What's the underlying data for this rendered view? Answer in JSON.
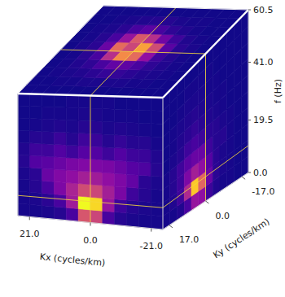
{
  "chart_data": {
    "type": "cube",
    "x_label": "Kx (cycles/km)",
    "y_label": "Ky (cycles/km)",
    "z_label": "f (Hz)",
    "xlim": [
      25,
      -25
    ],
    "ylim": [
      20,
      -20
    ],
    "zlim": [
      0,
      60.5
    ],
    "xticks": [
      {
        "value": 21,
        "label": "21.0"
      },
      {
        "value": 0,
        "label": "0.0"
      },
      {
        "value": -21,
        "label": "-21.0"
      }
    ],
    "yticks": [
      {
        "value": 17,
        "label": "17.0"
      },
      {
        "value": 0,
        "label": "0.0"
      },
      {
        "value": -17,
        "label": "-17.0"
      }
    ],
    "zticks": [
      {
        "value": 0,
        "label": "0.0"
      },
      19.5,
      {
        "value": 41,
        "label": "41.0"
      },
      60.5
    ],
    "color_range": [
      0,
      1
    ],
    "slice": {
      "Kx": 0,
      "Ky": 0,
      "f": 10
    },
    "faces": {
      "front": [
        [
          0.02,
          0.02,
          0.03,
          0.05,
          0.12,
          0.55,
          0.5,
          0.12,
          0.05,
          0.03,
          0.02,
          0.02
        ],
        [
          0.02,
          0.03,
          0.06,
          0.12,
          0.35,
          1.0,
          0.92,
          0.32,
          0.1,
          0.05,
          0.03,
          0.02
        ],
        [
          0.02,
          0.05,
          0.12,
          0.25,
          0.38,
          0.52,
          0.5,
          0.36,
          0.24,
          0.1,
          0.05,
          0.02
        ],
        [
          0.03,
          0.06,
          0.2,
          0.26,
          0.3,
          0.36,
          0.35,
          0.3,
          0.25,
          0.18,
          0.06,
          0.03
        ],
        [
          0.05,
          0.14,
          0.16,
          0.2,
          0.24,
          0.26,
          0.25,
          0.24,
          0.2,
          0.15,
          0.13,
          0.05
        ],
        [
          0.04,
          0.1,
          0.1,
          0.14,
          0.1,
          0.15,
          0.14,
          0.1,
          0.14,
          0.1,
          0.09,
          0.04
        ],
        [
          0.02,
          0.05,
          0.05,
          0.09,
          0.05,
          0.1,
          0.09,
          0.05,
          0.08,
          0.05,
          0.05,
          0.02
        ],
        [
          0.01,
          0.02,
          0.03,
          0.04,
          0.03,
          0.05,
          0.05,
          0.03,
          0.04,
          0.03,
          0.02,
          0.01
        ],
        [
          0.01,
          0.01,
          0.02,
          0.02,
          0.02,
          0.03,
          0.03,
          0.02,
          0.02,
          0.02,
          0.01,
          0.01
        ],
        [
          0.01,
          0.01,
          0.01,
          0.01,
          0.02,
          0.02,
          0.02,
          0.02,
          0.01,
          0.01,
          0.01,
          0.01
        ]
      ],
      "right": [
        [
          0.02,
          0.02,
          0.04,
          0.12,
          0.32,
          0.3,
          0.1,
          0.04,
          0.02,
          0.02,
          0.01,
          0.01
        ],
        [
          0.02,
          0.04,
          0.1,
          0.4,
          0.88,
          0.6,
          0.2,
          0.06,
          0.03,
          0.02,
          0.01,
          0.01
        ],
        [
          0.02,
          0.05,
          0.1,
          0.25,
          0.36,
          0.3,
          0.15,
          0.06,
          0.03,
          0.02,
          0.01,
          0.01
        ],
        [
          0.02,
          0.05,
          0.1,
          0.16,
          0.2,
          0.2,
          0.1,
          0.05,
          0.05,
          0.02,
          0.01,
          0.01
        ],
        [
          0.01,
          0.03,
          0.05,
          0.1,
          0.12,
          0.1,
          0.06,
          0.05,
          0.03,
          0.02,
          0.01,
          0.01
        ],
        [
          0.01,
          0.02,
          0.04,
          0.06,
          0.08,
          0.06,
          0.04,
          0.03,
          0.02,
          0.01,
          0.01,
          0.01
        ],
        [
          0.01,
          0.02,
          0.03,
          0.04,
          0.05,
          0.04,
          0.03,
          0.02,
          0.02,
          0.01,
          0.01,
          0.01
        ],
        [
          0.01,
          0.01,
          0.02,
          0.03,
          0.03,
          0.03,
          0.02,
          0.02,
          0.01,
          0.01,
          0.01,
          0.01
        ],
        [
          0.01,
          0.01,
          0.01,
          0.02,
          0.02,
          0.02,
          0.02,
          0.01,
          0.01,
          0.01,
          0.01,
          0.01
        ],
        [
          0.01,
          0.01,
          0.01,
          0.01,
          0.01,
          0.01,
          0.01,
          0.01,
          0.01,
          0.01,
          0.01,
          0.01
        ]
      ],
      "top": [
        [
          0.01,
          0.01,
          0.01,
          0.01,
          0.01,
          0.01,
          0.01,
          0.01,
          0.01,
          0.01,
          0.01,
          0.01
        ],
        [
          0.01,
          0.01,
          0.02,
          0.02,
          0.03,
          0.03,
          0.03,
          0.03,
          0.02,
          0.02,
          0.01,
          0.01
        ],
        [
          0.01,
          0.02,
          0.03,
          0.04,
          0.06,
          0.08,
          0.08,
          0.06,
          0.04,
          0.03,
          0.02,
          0.01
        ],
        [
          0.01,
          0.02,
          0.04,
          0.07,
          0.12,
          0.18,
          0.17,
          0.12,
          0.07,
          0.04,
          0.02,
          0.01
        ],
        [
          0.01,
          0.02,
          0.06,
          0.12,
          0.42,
          0.72,
          0.62,
          0.3,
          0.1,
          0.05,
          0.02,
          0.01
        ],
        [
          0.01,
          0.03,
          0.06,
          0.2,
          0.62,
          0.5,
          0.78,
          0.52,
          0.16,
          0.06,
          0.03,
          0.01
        ],
        [
          0.01,
          0.02,
          0.05,
          0.12,
          0.32,
          0.56,
          0.42,
          0.22,
          0.1,
          0.04,
          0.02,
          0.01
        ],
        [
          0.01,
          0.02,
          0.03,
          0.06,
          0.12,
          0.16,
          0.12,
          0.07,
          0.04,
          0.02,
          0.01,
          0.01
        ],
        [
          0.01,
          0.01,
          0.02,
          0.03,
          0.04,
          0.05,
          0.05,
          0.03,
          0.02,
          0.02,
          0.01,
          0.01
        ],
        [
          0.01,
          0.01,
          0.01,
          0.01,
          0.01,
          0.01,
          0.01,
          0.01,
          0.01,
          0.01,
          0.01,
          0.01
        ]
      ]
    }
  }
}
